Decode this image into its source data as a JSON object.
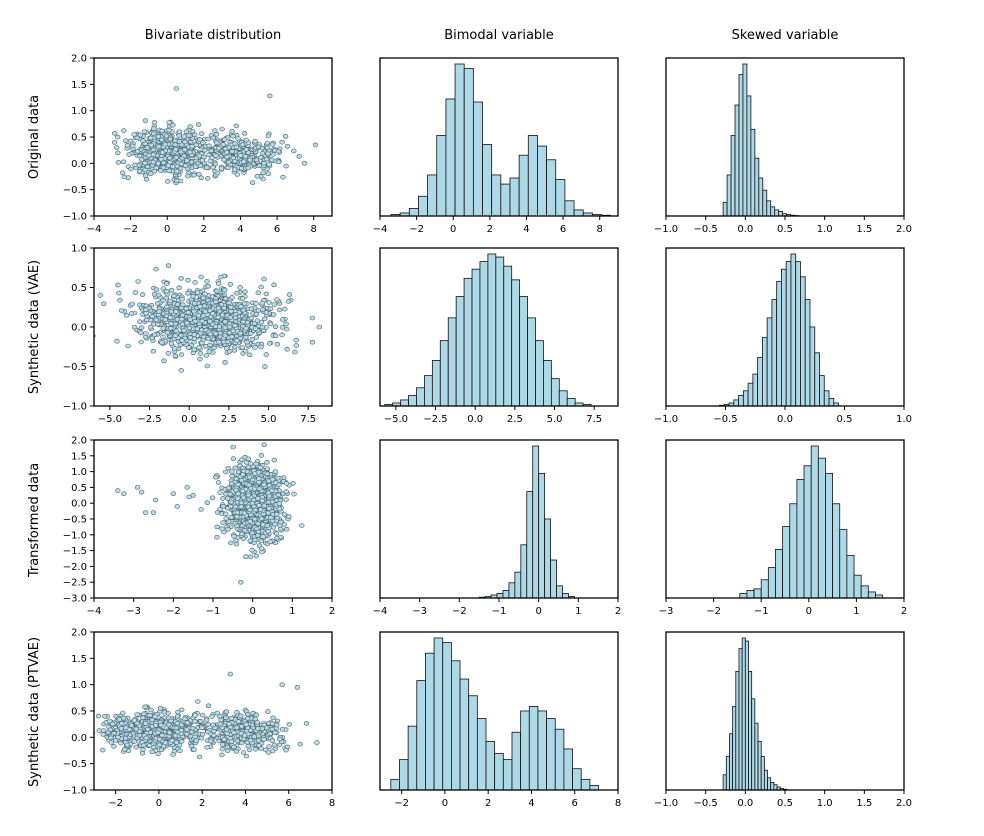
{
  "chart_data": {
    "type": "grid",
    "column_titles": [
      "Bivariate distribution",
      "Bimodal variable",
      "Skewed variable"
    ],
    "row_labels": [
      "Original data",
      "Synthetic data (VAE)",
      "Transformed data",
      "Synthetic data (PTVAE)"
    ],
    "panels": [
      [
        {
          "type": "scatter",
          "xlim": [
            -4,
            9
          ],
          "ylim": [
            -1,
            2
          ],
          "xticks": [
            -4,
            -2,
            0,
            2,
            4,
            6,
            8
          ],
          "yticks": [
            -1.0,
            -0.5,
            0.0,
            0.5,
            1.0,
            1.5,
            2.0
          ],
          "xtick_labels": [
            "−4",
            "−2",
            "0",
            "2",
            "4",
            "6",
            "8"
          ],
          "ytick_labels": [
            "−1.0",
            "−0.5",
            "0.0",
            "0.5",
            "1.0",
            "1.5",
            "2.0"
          ],
          "clusters": [
            {
              "cx": 0,
              "cy": 0.2,
              "sx": 1.1,
              "sy": 0.22,
              "n": 600
            },
            {
              "cx": 4,
              "cy": 0.15,
              "sx": 1.0,
              "sy": 0.18,
              "n": 350
            }
          ],
          "points": [
            [
              0.5,
              1.42
            ],
            [
              5.6,
              1.28
            ],
            [
              8.1,
              0.35
            ],
            [
              -2.7,
              0.2
            ],
            [
              7.5,
              0.0
            ]
          ]
        },
        {
          "type": "histogram",
          "xlim": [
            -4,
            9
          ],
          "xticks": [
            -4,
            -2,
            0,
            2,
            4,
            6,
            8
          ],
          "xtick_labels": [
            "−4",
            "−2",
            "0",
            "2",
            "4",
            "6",
            "8"
          ],
          "bin_start": -3.4,
          "bin_width": 0.5,
          "counts": [
            0.01,
            0.02,
            0.05,
            0.13,
            0.27,
            0.53,
            0.77,
            1.0,
            0.97,
            0.75,
            0.47,
            0.27,
            0.21,
            0.25,
            0.4,
            0.53,
            0.46,
            0.37,
            0.24,
            0.1,
            0.04,
            0.02,
            0.01,
            0.005
          ]
        },
        {
          "type": "histogram",
          "xlim": [
            -1,
            2
          ],
          "xticks": [
            -1.0,
            -0.5,
            0.0,
            0.5,
            1.0,
            1.5,
            2.0
          ],
          "xtick_labels": [
            "−1.0",
            "−0.5",
            "0.0",
            "0.5",
            "1.0",
            "1.5",
            "2.0"
          ],
          "bin_start": -0.28,
          "bin_width": 0.05,
          "counts": [
            0.09,
            0.27,
            0.53,
            0.73,
            0.93,
            1.0,
            0.79,
            0.57,
            0.38,
            0.25,
            0.17,
            0.1,
            0.06,
            0.04,
            0.03,
            0.015,
            0.01,
            0.005,
            0.003
          ]
        }
      ],
      [
        {
          "type": "scatter",
          "xlim": [
            -6,
            9
          ],
          "ylim": [
            -1,
            1
          ],
          "xticks": [
            -5.0,
            -2.5,
            0.0,
            2.5,
            5.0,
            7.5
          ],
          "yticks": [
            -1.0,
            -0.5,
            0.0,
            0.5,
            1.0
          ],
          "xtick_labels": [
            "−5.0",
            "−2.5",
            "0.0",
            "2.5",
            "5.0",
            "7.5"
          ],
          "ytick_labels": [
            "−1.0",
            "−0.5",
            "0.0",
            "0.5",
            "1.0"
          ],
          "clusters": [
            {
              "cx": 1.2,
              "cy": 0.08,
              "sx": 2.1,
              "sy": 0.2,
              "n": 1100
            }
          ],
          "points": [
            [
              -5.6,
              0.4
            ],
            [
              8.2,
              0.0
            ],
            [
              -0.5,
              -0.55
            ]
          ]
        },
        {
          "type": "histogram",
          "xlim": [
            -6,
            9
          ],
          "xticks": [
            -5.0,
            -2.5,
            0.0,
            2.5,
            5.0,
            7.5
          ],
          "xtick_labels": [
            "−5.0",
            "−2.5",
            "0.0",
            "2.5",
            "5.0",
            "7.5"
          ],
          "bin_start": -5.7,
          "bin_width": 0.5,
          "counts": [
            0.01,
            0.02,
            0.04,
            0.07,
            0.12,
            0.2,
            0.3,
            0.43,
            0.58,
            0.72,
            0.84,
            0.9,
            0.95,
            1.0,
            0.98,
            0.92,
            0.83,
            0.72,
            0.58,
            0.43,
            0.3,
            0.18,
            0.1,
            0.05,
            0.02,
            0.01
          ]
        },
        {
          "type": "histogram",
          "xlim": [
            -1,
            1
          ],
          "xticks": [
            -1.0,
            -0.5,
            0.0,
            0.5,
            1.0
          ],
          "xtick_labels": [
            "−1.0",
            "−0.5",
            "0.0",
            "0.5",
            "1.0"
          ],
          "bin_start": -0.55,
          "bin_width": 0.04,
          "counts": [
            0.005,
            0.01,
            0.02,
            0.04,
            0.07,
            0.1,
            0.15,
            0.21,
            0.32,
            0.45,
            0.58,
            0.7,
            0.82,
            0.9,
            0.95,
            1.0,
            0.95,
            0.85,
            0.7,
            0.52,
            0.35,
            0.2,
            0.1,
            0.05,
            0.02
          ]
        }
      ],
      [
        {
          "type": "scatter",
          "xlim": [
            -4,
            2
          ],
          "ylim": [
            -3,
            2
          ],
          "xticks": [
            -4,
            -3,
            -2,
            -1,
            0,
            1,
            2
          ],
          "yticks": [
            -3.0,
            -2.5,
            -2.0,
            -1.5,
            -1.0,
            -0.5,
            0.0,
            0.5,
            1.0,
            1.5,
            2.0
          ],
          "xtick_labels": [
            "−4",
            "−3",
            "−2",
            "−1",
            "0",
            "1",
            "2"
          ],
          "ytick_labels": [
            "−3.0",
            "−2.5",
            "−2.0",
            "−1.5",
            "−1.0",
            "−0.5",
            "0.0",
            "0.5",
            "1.0",
            "1.5",
            "2.0"
          ],
          "clusters": [
            {
              "cx": 0.05,
              "cy": 0.0,
              "sx": 0.35,
              "sy": 0.55,
              "n": 1100
            }
          ],
          "points": [
            [
              -3.4,
              0.4
            ],
            [
              -3.25,
              0.3
            ],
            [
              -2.9,
              0.5
            ],
            [
              -2.8,
              0.35
            ],
            [
              -2.7,
              -0.3
            ],
            [
              -2.5,
              -0.3
            ],
            [
              -2.0,
              0.3
            ],
            [
              -1.65,
              0.5
            ],
            [
              -1.6,
              0.2
            ],
            [
              -1.5,
              0.25
            ],
            [
              -1.3,
              -0.2
            ],
            [
              -0.3,
              -2.5
            ],
            [
              -2.45,
              0.1
            ],
            [
              -1.9,
              -0.1
            ]
          ]
        },
        {
          "type": "histogram",
          "xlim": [
            -4,
            2
          ],
          "xticks": [
            -4,
            -3,
            -2,
            -1,
            0,
            1,
            2
          ],
          "xtick_labels": [
            "−4",
            "−3",
            "−2",
            "−1",
            "0",
            "1",
            "2"
          ],
          "bin_start": -1.5,
          "bin_width": 0.15,
          "counts": [
            0.005,
            0.01,
            0.02,
            0.03,
            0.05,
            0.1,
            0.17,
            0.35,
            0.7,
            1.0,
            0.82,
            0.52,
            0.25,
            0.08,
            0.03,
            0.01
          ]
        },
        {
          "type": "histogram",
          "xlim": [
            -3,
            2
          ],
          "xticks": [
            -3,
            -2,
            -1,
            0,
            1,
            2
          ],
          "xtick_labels": [
            "−3",
            "−2",
            "−1",
            "0",
            "1",
            "2"
          ],
          "bin_start": -1.45,
          "bin_width": 0.15,
          "counts": [
            0.03,
            0.05,
            0.06,
            0.12,
            0.2,
            0.32,
            0.47,
            0.62,
            0.78,
            0.87,
            1.0,
            0.92,
            0.82,
            0.62,
            0.45,
            0.28,
            0.15,
            0.08,
            0.04,
            0.02
          ]
        }
      ],
      [
        {
          "type": "scatter",
          "xlim": [
            -3,
            8
          ],
          "ylim": [
            -1,
            2
          ],
          "xticks": [
            -2,
            0,
            2,
            4,
            6,
            8
          ],
          "yticks": [
            -1.0,
            -0.5,
            0.0,
            0.5,
            1.0,
            1.5,
            2.0
          ],
          "xtick_labels": [
            "−2",
            "0",
            "2",
            "4",
            "6",
            "8"
          ],
          "ytick_labels": [
            "−1.0",
            "−0.5",
            "0.0",
            "0.5",
            "1.0",
            "1.5",
            "2.0"
          ],
          "clusters": [
            {
              "cx": -0.2,
              "cy": 0.12,
              "sx": 1.2,
              "sy": 0.18,
              "n": 600
            },
            {
              "cx": 3.8,
              "cy": 0.1,
              "sx": 1.0,
              "sy": 0.17,
              "n": 380
            }
          ],
          "points": [
            [
              -2.5,
              0.4
            ],
            [
              5.7,
              1.0
            ],
            [
              6.4,
              0.95
            ],
            [
              7.3,
              -0.1
            ],
            [
              3.3,
              1.2
            ]
          ]
        },
        {
          "type": "histogram",
          "xlim": [
            -3,
            8
          ],
          "xticks": [
            -2,
            0,
            2,
            4,
            6,
            8
          ],
          "xtick_labels": [
            "−2",
            "0",
            "2",
            "4",
            "6",
            "8"
          ],
          "bin_start": -2.5,
          "bin_width": 0.4,
          "counts": [
            0.07,
            0.2,
            0.42,
            0.72,
            0.9,
            1.0,
            0.97,
            0.85,
            0.73,
            0.62,
            0.47,
            0.32,
            0.24,
            0.2,
            0.38,
            0.52,
            0.55,
            0.52,
            0.47,
            0.4,
            0.27,
            0.14,
            0.07,
            0.03
          ]
        },
        {
          "type": "histogram",
          "xlim": [
            -1,
            2
          ],
          "xticks": [
            -1.0,
            -0.5,
            0.0,
            0.5,
            1.0,
            1.5,
            2.0
          ],
          "xtick_labels": [
            "−1.0",
            "−0.5",
            "0.0",
            "0.5",
            "1.0",
            "1.5",
            "2.0"
          ],
          "bin_start": -0.28,
          "bin_width": 0.04,
          "counts": [
            0.1,
            0.22,
            0.37,
            0.55,
            0.78,
            0.93,
            1.0,
            0.98,
            0.78,
            0.6,
            0.44,
            0.32,
            0.22,
            0.13,
            0.08,
            0.05,
            0.035,
            0.02,
            0.01,
            0.005
          ]
        }
      ]
    ]
  }
}
